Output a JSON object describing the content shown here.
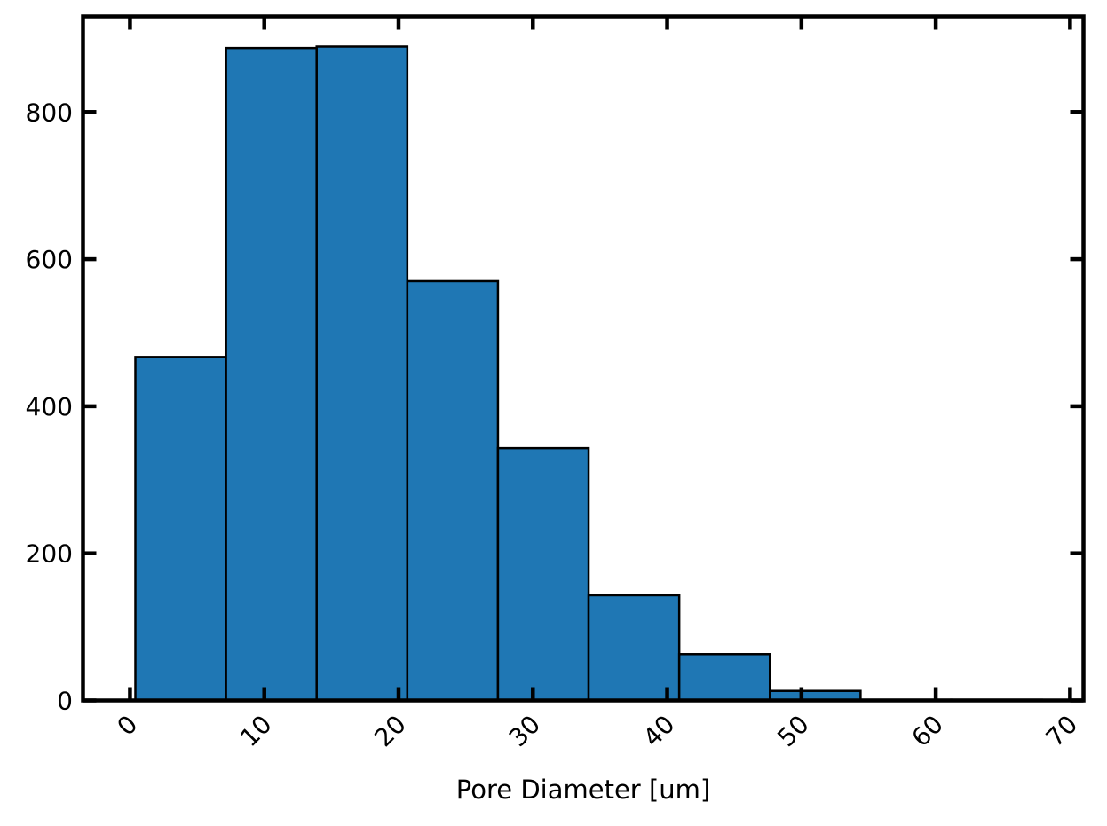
{
  "chart_data": {
    "type": "bar",
    "title": "",
    "xlabel": "Pore Diameter [um]",
    "ylabel": "",
    "xlim": [
      -3.5,
      71
    ],
    "ylim": [
      0,
      930
    ],
    "xticks": [
      0,
      10,
      20,
      30,
      40,
      50,
      60,
      70
    ],
    "xtick_labels": [
      "0",
      "10",
      "20",
      "30",
      "40",
      "50",
      "60",
      "70"
    ],
    "yticks": [
      0,
      200,
      400,
      600,
      800
    ],
    "ytick_labels": [
      "0",
      "200",
      "400",
      "600",
      "800"
    ],
    "grid": false,
    "bin_edges": [
      0.4,
      7.15,
      13.9,
      20.65,
      27.4,
      34.15,
      40.9,
      47.65,
      54.4,
      61.15,
      67.9
    ],
    "values": [
      467,
      887,
      889,
      570,
      343,
      143,
      63,
      13,
      1,
      1
    ],
    "bar_color": "#1f77b4",
    "edge_color": "#000000"
  }
}
